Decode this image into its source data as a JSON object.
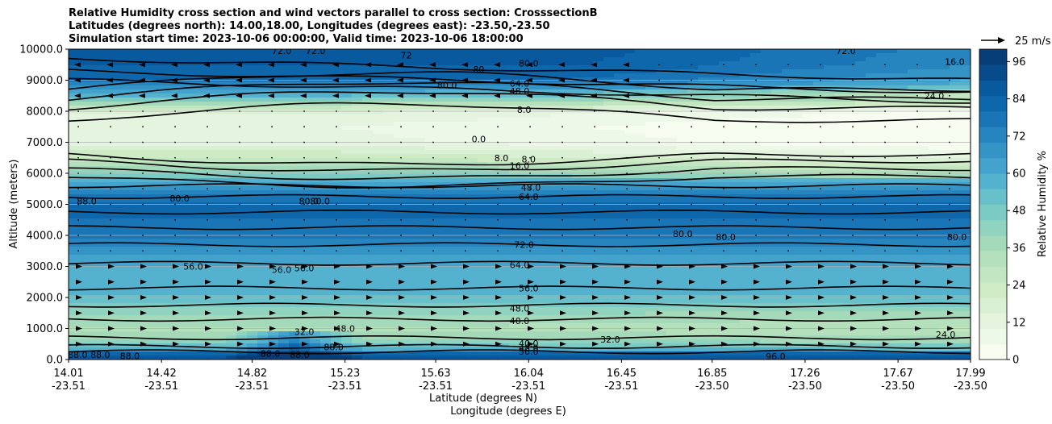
{
  "chart_data": {
    "type": "heatmap",
    "title_lines": [
      "Relative Humidity cross section and wind vectors parallel to cross section: CrosssectionB",
      "Latitudes (degrees north): 14.00,18.00, Longitudes (degrees east): -23.50,-23.50",
      "Simulation start time: 2023-10-06 00:00:00, Valid time: 2023-10-06 18:00:00"
    ],
    "ylabel": "Altitude (meters)",
    "xlabel": "Latitude (degrees N)",
    "xlabel2": "Longitude (degrees E)",
    "ylim": [
      0,
      10000
    ],
    "y_ticks": [
      "0.0",
      "1000.0",
      "2000.0",
      "3000.0",
      "4000.0",
      "5000.0",
      "6000.0",
      "7000.0",
      "8000.0",
      "9000.0",
      "10000.0"
    ],
    "x_range": [
      14.01,
      17.99
    ],
    "x_ticks": [
      {
        "lat": "14.01",
        "lon": "-23.51"
      },
      {
        "lat": "14.42",
        "lon": "-23.51"
      },
      {
        "lat": "14.82",
        "lon": "-23.51"
      },
      {
        "lat": "15.23",
        "lon": "-23.51"
      },
      {
        "lat": "15.63",
        "lon": "-23.51"
      },
      {
        "lat": "16.04",
        "lon": "-23.51"
      },
      {
        "lat": "16.45",
        "lon": "-23.51"
      },
      {
        "lat": "16.85",
        "lon": "-23.50"
      },
      {
        "lat": "17.26",
        "lon": "-23.50"
      },
      {
        "lat": "17.67",
        "lon": "-23.50"
      },
      {
        "lat": "17.99",
        "lon": "-23.50"
      }
    ],
    "colorbar": {
      "label": "Relative Humidity %",
      "ticks": [
        "0",
        "12",
        "24",
        "36",
        "48",
        "60",
        "72",
        "84",
        "96"
      ],
      "range": [
        0,
        100
      ],
      "colors": [
        "#f7fcf0",
        "#eef8e8",
        "#e4f4df",
        "#daf0d4",
        "#cfebc6",
        "#c2e6bf",
        "#b4e1bb",
        "#a4dab9",
        "#90d3be",
        "#7bcbc4",
        "#67c0ca",
        "#55b2ce",
        "#43a3cc",
        "#3494c6",
        "#2684bf",
        "#1975b6",
        "#0f67ab",
        "#08599d",
        "#084b8a",
        "#083e78"
      ]
    },
    "quiver_key": "25 m/s",
    "contour_labels": [
      {
        "text": "72.0",
        "lat": 14.95,
        "alt": 9950
      },
      {
        "text": "72.0",
        "lat": 15.1,
        "alt": 9950
      },
      {
        "text": "72",
        "lat": 15.5,
        "alt": 9800
      },
      {
        "text": "80.0",
        "lat": 15.68,
        "alt": 8850
      },
      {
        "text": "80",
        "lat": 15.82,
        "alt": 9350
      },
      {
        "text": "80.0",
        "lat": 16.04,
        "alt": 9550
      },
      {
        "text": "64.0",
        "lat": 16.0,
        "alt": 8900
      },
      {
        "text": "48.0",
        "lat": 16.0,
        "alt": 8650
      },
      {
        "text": "8.0",
        "lat": 16.02,
        "alt": 8050
      },
      {
        "text": "0.0",
        "lat": 15.82,
        "alt": 7100
      },
      {
        "text": "8.0",
        "lat": 15.92,
        "alt": 6500
      },
      {
        "text": "8.0",
        "lat": 16.04,
        "alt": 6450
      },
      {
        "text": "16.0",
        "lat": 16.0,
        "alt": 6250
      },
      {
        "text": "48.0",
        "lat": 16.05,
        "alt": 5550
      },
      {
        "text": "64.0",
        "lat": 16.04,
        "alt": 5250
      },
      {
        "text": "24.0",
        "lat": 17.83,
        "alt": 8500
      },
      {
        "text": "16.0",
        "lat": 17.92,
        "alt": 9600
      },
      {
        "text": "72.0",
        "lat": 17.44,
        "alt": 9950
      },
      {
        "text": "88.0",
        "lat": 14.09,
        "alt": 5100
      },
      {
        "text": "80.0",
        "lat": 14.5,
        "alt": 5200
      },
      {
        "text": "80.0",
        "lat": 15.07,
        "alt": 5100
      },
      {
        "text": "80.0",
        "lat": 15.12,
        "alt": 5100
      },
      {
        "text": "72.0",
        "lat": 16.02,
        "alt": 3700
      },
      {
        "text": "64.0",
        "lat": 16.0,
        "alt": 3050
      },
      {
        "text": "80.0",
        "lat": 16.72,
        "alt": 4050
      },
      {
        "text": "80.0",
        "lat": 16.91,
        "alt": 3950
      },
      {
        "text": "80.0",
        "lat": 17.93,
        "alt": 3950
      },
      {
        "text": "56.0",
        "lat": 14.56,
        "alt": 3000
      },
      {
        "text": "56.0",
        "lat": 14.95,
        "alt": 2900
      },
      {
        "text": "56.0",
        "lat": 15.05,
        "alt": 2950
      },
      {
        "text": "56.0",
        "lat": 16.04,
        "alt": 2300
      },
      {
        "text": "48.0",
        "lat": 16.0,
        "alt": 1650
      },
      {
        "text": "40.0",
        "lat": 16.0,
        "alt": 1250
      },
      {
        "text": "48.0",
        "lat": 15.23,
        "alt": 1000
      },
      {
        "text": "32.0",
        "lat": 15.05,
        "alt": 900
      },
      {
        "text": "32.0",
        "lat": 16.4,
        "alt": 650
      },
      {
        "text": "40.0",
        "lat": 16.04,
        "alt": 520
      },
      {
        "text": "48.0",
        "lat": 16.04,
        "alt": 380
      },
      {
        "text": "56.0",
        "lat": 16.04,
        "alt": 260
      },
      {
        "text": "88.0",
        "lat": 14.05,
        "alt": 150
      },
      {
        "text": "88.0",
        "lat": 14.15,
        "alt": 150
      },
      {
        "text": "88.0",
        "lat": 14.28,
        "alt": 120
      },
      {
        "text": "88.0",
        "lat": 14.9,
        "alt": 200
      },
      {
        "text": "88.0",
        "lat": 15.03,
        "alt": 150
      },
      {
        "text": "88.0",
        "lat": 15.18,
        "alt": 400
      },
      {
        "text": "96.0",
        "lat": 17.13,
        "alt": 100
      },
      {
        "text": "24.0",
        "lat": 17.88,
        "alt": 800
      }
    ]
  }
}
